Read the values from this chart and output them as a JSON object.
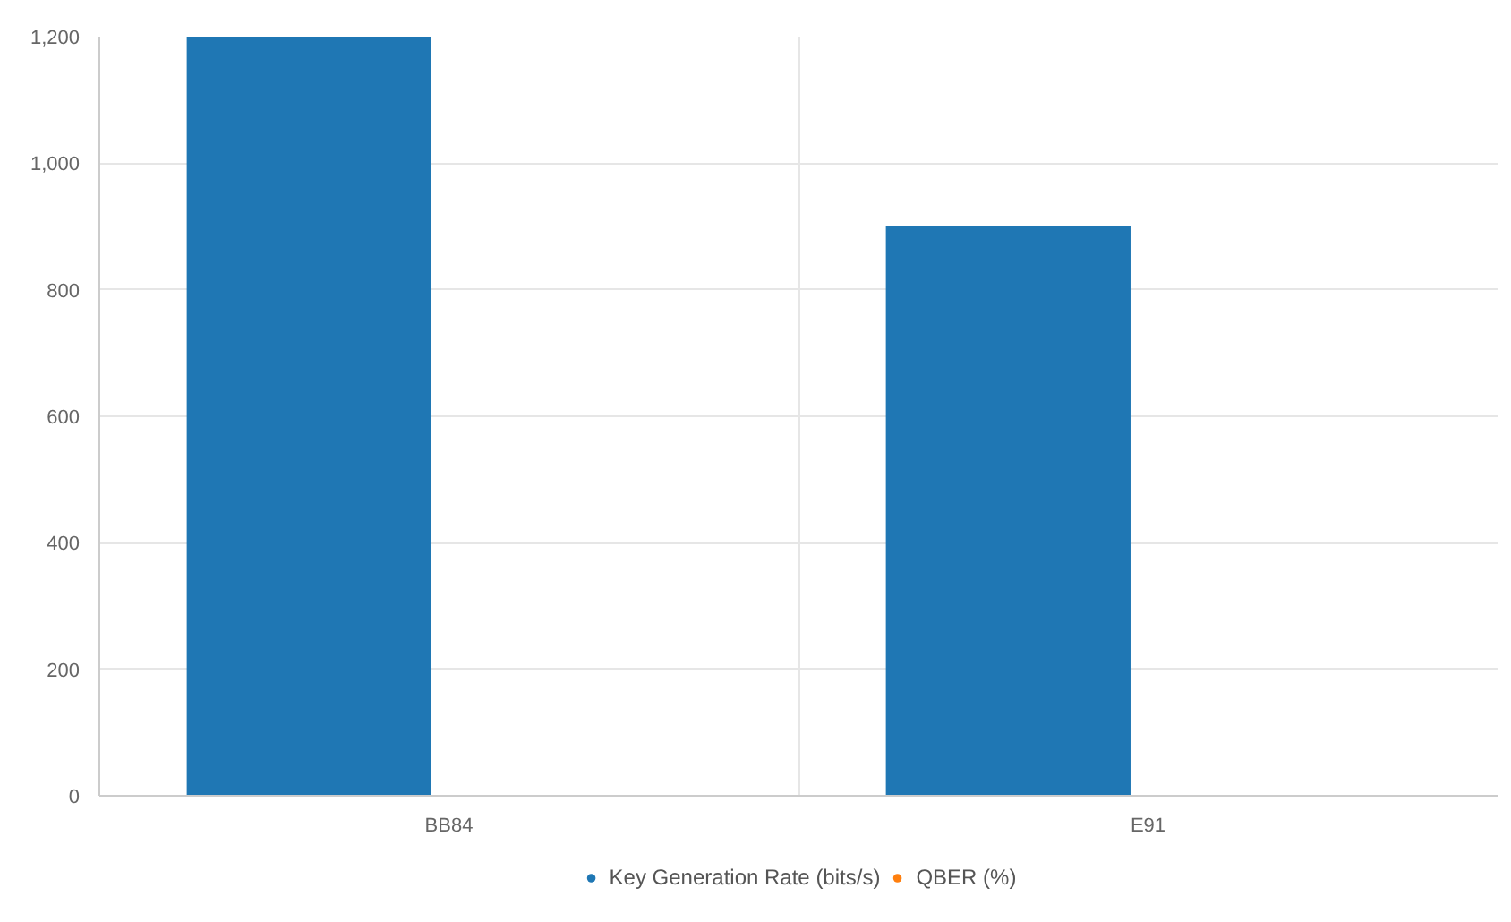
{
  "chart_data": {
    "type": "bar",
    "categories": [
      "BB84",
      "E91"
    ],
    "series": [
      {
        "name": "Key Generation Rate (bits/s)",
        "color": "#1f77b4",
        "values": [
          1200,
          900
        ]
      },
      {
        "name": "QBER (%)",
        "color": "#ff7f0e",
        "values": [
          0,
          0
        ]
      }
    ],
    "ylim": [
      0,
      1200
    ],
    "yticks": [
      0,
      {
        "value": 200,
        "label": "200"
      },
      {
        "value": 400,
        "label": "400"
      },
      {
        "value": 600,
        "label": "600"
      },
      {
        "value": 800,
        "label": "800"
      },
      {
        "value": 1000,
        "label": "1,000"
      },
      {
        "value": 1200,
        "label": "1,200"
      }
    ],
    "grid": true,
    "legend": "bottom"
  }
}
